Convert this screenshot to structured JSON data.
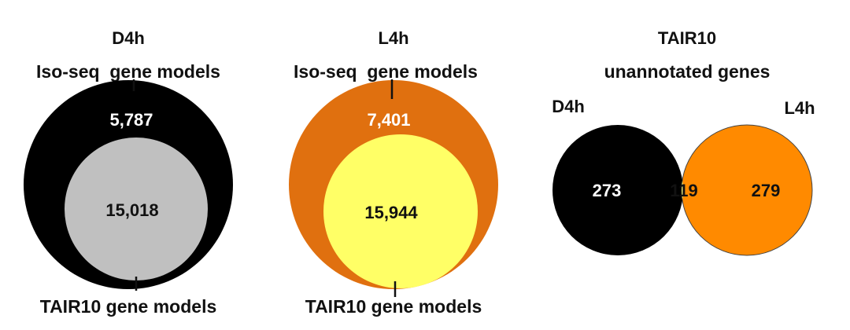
{
  "panels": [
    {
      "title": "D4h",
      "top_label": "Iso-seq  gene models",
      "bottom_label": "TAIR10 gene models",
      "outer_count": "5,787",
      "inner_count": "15,018",
      "colors": {
        "outer": "#000000",
        "inner": "#c0c0c0",
        "outer_text": "#ffffff",
        "inner_text": "#111111"
      }
    },
    {
      "title": "L4h",
      "top_label": "Iso-seq  gene models",
      "bottom_label": "TAIR10 gene models",
      "outer_count": "7,401",
      "inner_count": "15,944",
      "colors": {
        "outer": "#e0700f",
        "inner": "#ffff66",
        "outer_text": "#ffffff",
        "inner_text": "#111111"
      }
    }
  ],
  "venn": {
    "title_line1": "TAIR10",
    "title_line2": "unannotated genes",
    "left_label": "D4h",
    "right_label": "L4h",
    "left_only": "273",
    "overlap": "119",
    "right_only": "279",
    "colors": {
      "left": "#000000",
      "right": "#ff8a00",
      "overlap": "#ffff88",
      "left_text": "#ffffff",
      "right_text": "#111111",
      "overlap_text": "#111111"
    }
  }
}
